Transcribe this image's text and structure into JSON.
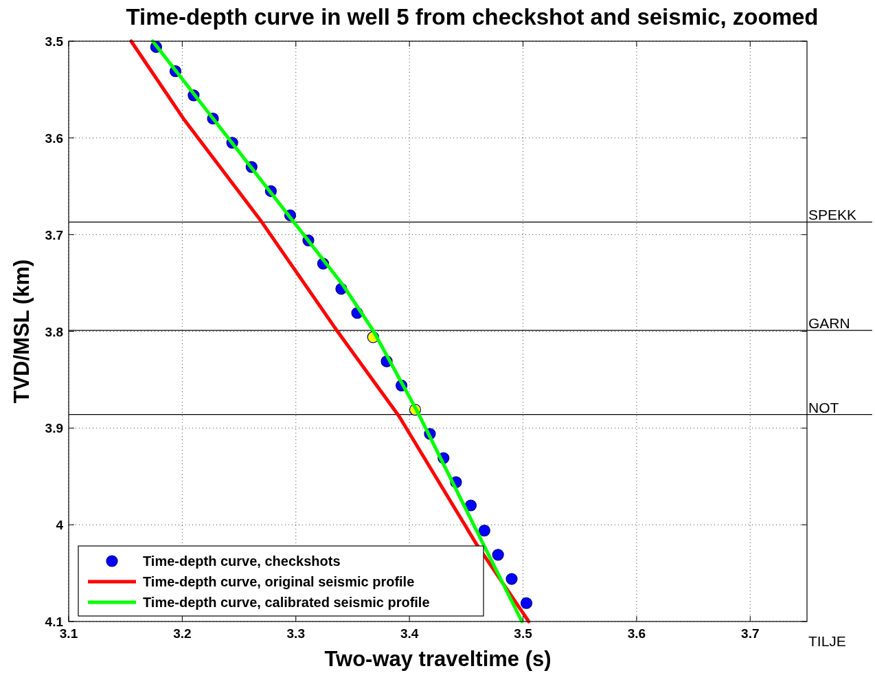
{
  "chart_data": {
    "type": "scatter",
    "title": "Time-depth curve in well 5 from checkshot and seismic, zoomed",
    "xlabel": "Two-way traveltime (s)",
    "ylabel": "TVD/MSL (km)",
    "xlim": [
      3.1,
      3.75
    ],
    "xticks": [
      3.1,
      3.2,
      3.3,
      3.4,
      3.5,
      3.6,
      3.7
    ],
    "ylim": [
      4.1,
      3.5
    ],
    "yticks": [
      3.5,
      3.6,
      3.7,
      3.8,
      3.9,
      4,
      4.1
    ],
    "grid": true,
    "legend": "bottom left",
    "marker": "circle",
    "series": [
      {
        "name": "Time-depth curve, checkshots",
        "color": "#0000ff",
        "x": [
          3.177,
          3.194,
          3.21,
          3.227,
          3.244,
          3.261,
          3.278,
          3.295,
          3.311,
          3.324,
          3.34,
          3.354,
          3.38,
          3.393,
          3.418,
          3.43,
          3.441,
          3.454,
          3.466,
          3.478,
          3.49,
          3.503
        ],
        "values": [
          3.506,
          3.531,
          3.556,
          3.58,
          3.605,
          3.63,
          3.655,
          3.68,
          3.706,
          3.73,
          3.756,
          3.781,
          3.831,
          3.856,
          3.906,
          3.931,
          3.956,
          3.98,
          4.006,
          4.031,
          4.056,
          4.081
        ]
      },
      {
        "color": "#ffff00",
        "x": [
          3.368,
          3.405
        ],
        "values": [
          3.806,
          3.881
        ]
      },
      {
        "name": "Time-depth curve, original seismic profile",
        "type": "line",
        "marker": "none",
        "color": "#ff0000",
        "x": [
          3.155,
          3.201,
          3.27,
          3.336,
          3.391,
          3.459,
          3.505
        ],
        "values": [
          3.5,
          3.58,
          3.687,
          3.799,
          3.888,
          4.02,
          4.1
        ]
      },
      {
        "name": "Time-depth curve, calibrated seismic profile",
        "type": "line",
        "marker": "none",
        "color": "#00ff00",
        "x": [
          3.174,
          3.342,
          3.368,
          3.407,
          3.465,
          3.499
        ],
        "values": [
          3.5,
          3.753,
          3.799,
          3.883,
          4.02,
          4.1
        ]
      }
    ],
    "ref_lines": [
      {
        "axis": "y",
        "value": 3.687,
        "label": "SPEKK",
        "color": "#000000"
      },
      {
        "axis": "y",
        "value": 3.799,
        "label": "GARN",
        "color": "#000000"
      },
      {
        "axis": "y",
        "value": 3.886,
        "label": "NOT",
        "color": "#000000"
      }
    ],
    "annotations": [
      "TILJE"
    ]
  }
}
